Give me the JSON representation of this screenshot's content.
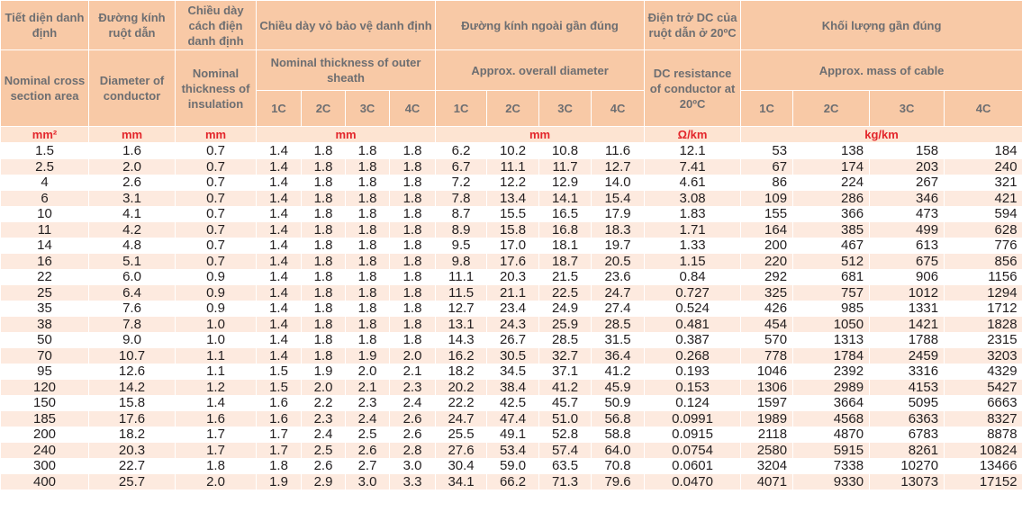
{
  "columns": [
    {
      "vi": "Tiết diện danh định",
      "en": "Nominal cross section area",
      "unit": "mm²"
    },
    {
      "vi": "Đường kính ruột dẫn",
      "en": "Diameter of conductor",
      "unit": "mm"
    },
    {
      "vi": "Chiều dày cách điện danh định",
      "en": "Nominal thickness of insulation",
      "unit": "mm"
    },
    {
      "vi": "Chiều dày vỏ bảo vệ danh định",
      "en": "Nominal thickness of outer sheath",
      "sub": [
        "1C",
        "2C",
        "3C",
        "4C"
      ],
      "unit": "mm"
    },
    {
      "vi": "Đường kính ngoài gần đúng",
      "en": "Approx. overall diameter",
      "sub": [
        "1C",
        "2C",
        "3C",
        "4C"
      ],
      "unit": "mm"
    },
    {
      "vi": "Điện trở DC của ruột dẫn ở 20ºC",
      "en": "DC resistance of conductor at 20ºC",
      "unit": "Ω/km"
    },
    {
      "vi": "Khối lượng gần đúng",
      "en": "Approx. mass of cable",
      "sub": [
        "1C",
        "2C",
        "3C",
        "4C"
      ],
      "unit": "kg/km"
    }
  ],
  "rows": [
    [
      "1.5",
      "1.6",
      "0.7",
      "1.4",
      "1.8",
      "1.8",
      "1.8",
      "6.2",
      "10.2",
      "10.8",
      "11.6",
      "12.1",
      "53",
      "138",
      "158",
      "184"
    ],
    [
      "2.5",
      "2.0",
      "0.7",
      "1.4",
      "1.8",
      "1.8",
      "1.8",
      "6.7",
      "11.1",
      "11.7",
      "12.7",
      "7.41",
      "67",
      "174",
      "203",
      "240"
    ],
    [
      "4",
      "2.6",
      "0.7",
      "1.4",
      "1.8",
      "1.8",
      "1.8",
      "7.2",
      "12.2",
      "12.9",
      "14.0",
      "4.61",
      "86",
      "224",
      "267",
      "321"
    ],
    [
      "6",
      "3.1",
      "0.7",
      "1.4",
      "1.8",
      "1.8",
      "1.8",
      "7.8",
      "13.4",
      "14.1",
      "15.4",
      "3.08",
      "109",
      "286",
      "346",
      "421"
    ],
    [
      "10",
      "4.1",
      "0.7",
      "1.4",
      "1.8",
      "1.8",
      "1.8",
      "8.7",
      "15.5",
      "16.5",
      "17.9",
      "1.83",
      "155",
      "366",
      "473",
      "594"
    ],
    [
      "11",
      "4.2",
      "0.7",
      "1.4",
      "1.8",
      "1.8",
      "1.8",
      "8.9",
      "15.8",
      "16.8",
      "18.3",
      "1.71",
      "164",
      "385",
      "499",
      "628"
    ],
    [
      "14",
      "4.8",
      "0.7",
      "1.4",
      "1.8",
      "1.8",
      "1.8",
      "9.5",
      "17.0",
      "18.1",
      "19.7",
      "1.33",
      "200",
      "467",
      "613",
      "776"
    ],
    [
      "16",
      "5.1",
      "0.7",
      "1.4",
      "1.8",
      "1.8",
      "1.8",
      "9.8",
      "17.6",
      "18.7",
      "20.5",
      "1.15",
      "220",
      "512",
      "675",
      "856"
    ],
    [
      "22",
      "6.0",
      "0.9",
      "1.4",
      "1.8",
      "1.8",
      "1.8",
      "11.1",
      "20.3",
      "21.5",
      "23.6",
      "0.84",
      "292",
      "681",
      "906",
      "1156"
    ],
    [
      "25",
      "6.4",
      "0.9",
      "1.4",
      "1.8",
      "1.8",
      "1.8",
      "11.5",
      "21.1",
      "22.5",
      "24.7",
      "0.727",
      "325",
      "757",
      "1012",
      "1294"
    ],
    [
      "35",
      "7.6",
      "0.9",
      "1.4",
      "1.8",
      "1.8",
      "1.8",
      "12.7",
      "23.4",
      "24.9",
      "27.4",
      "0.524",
      "426",
      "985",
      "1331",
      "1712"
    ],
    [
      "38",
      "7.8",
      "1.0",
      "1.4",
      "1.8",
      "1.8",
      "1.8",
      "13.1",
      "24.3",
      "25.9",
      "28.5",
      "0.481",
      "454",
      "1050",
      "1421",
      "1828"
    ],
    [
      "50",
      "9.0",
      "1.0",
      "1.4",
      "1.8",
      "1.8",
      "1.8",
      "14.3",
      "26.7",
      "28.5",
      "31.5",
      "0.387",
      "570",
      "1313",
      "1788",
      "2315"
    ],
    [
      "70",
      "10.7",
      "1.1",
      "1.4",
      "1.8",
      "1.9",
      "2.0",
      "16.2",
      "30.5",
      "32.7",
      "36.4",
      "0.268",
      "778",
      "1784",
      "2459",
      "3203"
    ],
    [
      "95",
      "12.6",
      "1.1",
      "1.5",
      "1.9",
      "2.0",
      "2.1",
      "18.2",
      "34.5",
      "37.1",
      "41.2",
      "0.193",
      "1046",
      "2392",
      "3316",
      "4329"
    ],
    [
      "120",
      "14.2",
      "1.2",
      "1.5",
      "2.0",
      "2.1",
      "2.3",
      "20.2",
      "38.4",
      "41.2",
      "45.9",
      "0.153",
      "1306",
      "2989",
      "4153",
      "5427"
    ],
    [
      "150",
      "15.8",
      "1.4",
      "1.6",
      "2.2",
      "2.3",
      "2.4",
      "22.2",
      "42.5",
      "45.7",
      "50.9",
      "0.124",
      "1597",
      "3664",
      "5095",
      "6663"
    ],
    [
      "185",
      "17.6",
      "1.6",
      "1.6",
      "2.3",
      "2.4",
      "2.6",
      "24.7",
      "47.4",
      "51.0",
      "56.8",
      "0.0991",
      "1989",
      "4568",
      "6363",
      "8327"
    ],
    [
      "200",
      "18.2",
      "1.7",
      "1.7",
      "2.4",
      "2.5",
      "2.6",
      "25.5",
      "49.1",
      "52.8",
      "58.8",
      "0.0915",
      "2118",
      "4870",
      "6783",
      "8878"
    ],
    [
      "240",
      "20.3",
      "1.7",
      "1.7",
      "2.5",
      "2.6",
      "2.8",
      "27.6",
      "53.4",
      "57.4",
      "64.0",
      "0.0754",
      "2580",
      "5915",
      "8261",
      "10824"
    ],
    [
      "300",
      "22.7",
      "1.8",
      "1.8",
      "2.6",
      "2.7",
      "3.0",
      "30.4",
      "59.0",
      "63.5",
      "70.8",
      "0.0601",
      "3204",
      "7338",
      "10270",
      "13466"
    ],
    [
      "400",
      "25.7",
      "2.0",
      "1.9",
      "2.9",
      "3.0",
      "3.3",
      "34.1",
      "66.2",
      "71.3",
      "79.6",
      "0.0470",
      "4071",
      "9330",
      "13073",
      "17152"
    ]
  ]
}
